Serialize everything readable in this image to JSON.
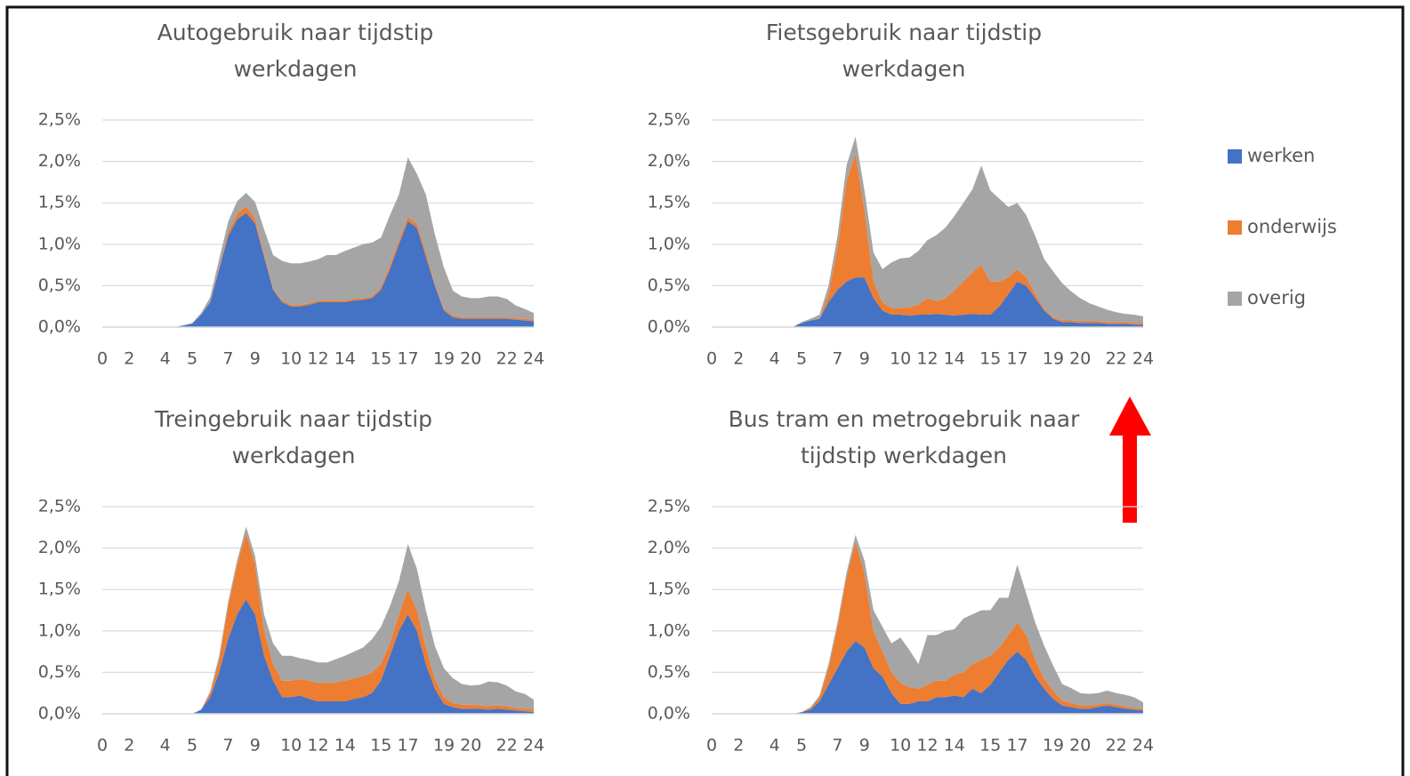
{
  "legend": [
    {
      "name": "werken",
      "color": "#4472c4"
    },
    {
      "name": "onderwijs",
      "color": "#ed7d31"
    },
    {
      "name": "overig",
      "color": "#a5a5a5"
    }
  ],
  "chart_data": [
    {
      "type": "area",
      "title": [
        "Autogebruik naar tijdstip",
        "werkdagen"
      ],
      "categories": [
        "0",
        null,
        null,
        "2",
        null,
        null,
        null,
        "4",
        null,
        null,
        "5",
        null,
        null,
        null,
        "7",
        null,
        null,
        "9",
        null,
        null,
        null,
        "10",
        null,
        null,
        "12",
        null,
        null,
        "14",
        null,
        null,
        null,
        "15",
        null,
        null,
        "17",
        null,
        null,
        null,
        "19",
        null,
        null,
        "20",
        null,
        null,
        null,
        "22",
        null,
        null,
        "24"
      ],
      "ylim": [
        0,
        2.5
      ],
      "yticks": [
        {
          "value": 0,
          "label": "0,0%"
        },
        {
          "value": 0.5,
          "label": "0,5%"
        },
        {
          "value": 1,
          "label": "1,0%"
        },
        {
          "value": 1.5,
          "label": "1,5%"
        },
        {
          "value": 2,
          "label": "2,0%"
        },
        {
          "value": 2.5,
          "label": "2,5%"
        }
      ],
      "grid": true,
      "series": [
        {
          "values": [
            0,
            0,
            0,
            0,
            0,
            0,
            0,
            0,
            0,
            0.02,
            0.04,
            0.15,
            0.3,
            0.7,
            1.1,
            1.3,
            1.38,
            1.25,
            0.85,
            0.45,
            0.3,
            0.25,
            0.25,
            0.27,
            0.3,
            0.3,
            0.3,
            0.3,
            0.32,
            0.33,
            0.35,
            0.45,
            0.7,
            1.0,
            1.28,
            1.2,
            0.85,
            0.5,
            0.2,
            0.12,
            0.1,
            0.1,
            0.1,
            0.1,
            0.1,
            0.1,
            0.09,
            0.08,
            0.07
          ]
        },
        {
          "values": [
            0,
            0,
            0,
            0,
            0,
            0,
            0,
            0,
            0,
            0,
            0,
            0,
            0.01,
            0.02,
            0.05,
            0.07,
            0.08,
            0.06,
            0.03,
            0.02,
            0.02,
            0.02,
            0.02,
            0.02,
            0.02,
            0.02,
            0.02,
            0.02,
            0.02,
            0.02,
            0.02,
            0.03,
            0.05,
            0.05,
            0.05,
            0.05,
            0.05,
            0.02,
            0.02,
            0.02,
            0.02,
            0.02,
            0.02,
            0.02,
            0.02,
            0.02,
            0.02,
            0.02,
            0.02
          ]
        },
        {
          "values": [
            0,
            0,
            0,
            0,
            0,
            0,
            0,
            0,
            0,
            0,
            0.01,
            0.02,
            0.05,
            0.1,
            0.12,
            0.15,
            0.16,
            0.2,
            0.3,
            0.4,
            0.48,
            0.5,
            0.5,
            0.5,
            0.5,
            0.55,
            0.55,
            0.6,
            0.62,
            0.65,
            0.65,
            0.6,
            0.6,
            0.55,
            0.72,
            0.6,
            0.7,
            0.6,
            0.5,
            0.3,
            0.25,
            0.23,
            0.23,
            0.25,
            0.25,
            0.22,
            0.15,
            0.12,
            0.08
          ]
        }
      ]
    },
    {
      "type": "area",
      "title": [
        "Fietsgebruik naar tijdstip",
        "werkdagen"
      ],
      "categories": [
        "0",
        null,
        null,
        "2",
        null,
        null,
        null,
        "4",
        null,
        null,
        "5",
        null,
        null,
        null,
        "7",
        null,
        null,
        "9",
        null,
        null,
        null,
        "10",
        null,
        null,
        "12",
        null,
        null,
        "14",
        null,
        null,
        null,
        "15",
        null,
        null,
        "17",
        null,
        null,
        null,
        "19",
        null,
        null,
        "20",
        null,
        null,
        null,
        "22",
        null,
        null,
        "24"
      ],
      "ylim": [
        0,
        2.5
      ],
      "yticks": [
        {
          "value": 0,
          "label": "0,0%"
        },
        {
          "value": 0.5,
          "label": "0,5%"
        },
        {
          "value": 1,
          "label": "1,0%"
        },
        {
          "value": 1.5,
          "label": "1,5%"
        },
        {
          "value": 2,
          "label": "2,0%"
        },
        {
          "value": 2.5,
          "label": "2,5%"
        }
      ],
      "grid": true,
      "series": [
        {
          "values": [
            0,
            0,
            0,
            0,
            0,
            0,
            0,
            0,
            0,
            0,
            0.05,
            0.08,
            0.1,
            0.3,
            0.45,
            0.55,
            0.6,
            0.6,
            0.35,
            0.2,
            0.15,
            0.15,
            0.14,
            0.15,
            0.15,
            0.16,
            0.15,
            0.14,
            0.15,
            0.16,
            0.15,
            0.15,
            0.25,
            0.4,
            0.55,
            0.5,
            0.35,
            0.2,
            0.1,
            0.06,
            0.06,
            0.05,
            0.05,
            0.05,
            0.04,
            0.04,
            0.04,
            0.03,
            0.03
          ]
        },
        {
          "values": [
            0,
            0,
            0,
            0,
            0,
            0,
            0,
            0,
            0,
            0,
            0,
            0,
            0,
            0.1,
            0.5,
            1.2,
            1.5,
            0.8,
            0.2,
            0.1,
            0.08,
            0.08,
            0.1,
            0.12,
            0.2,
            0.15,
            0.2,
            0.3,
            0.4,
            0.5,
            0.6,
            0.4,
            0.3,
            0.2,
            0.15,
            0.1,
            0.05,
            0.02,
            0.02,
            0.02,
            0.02,
            0.02,
            0.02,
            0.02,
            0.02,
            0.02,
            0.02,
            0.02,
            0.02
          ]
        },
        {
          "values": [
            0,
            0,
            0,
            0,
            0,
            0,
            0,
            0,
            0,
            0,
            0.01,
            0.02,
            0.05,
            0.1,
            0.15,
            0.2,
            0.2,
            0.25,
            0.35,
            0.4,
            0.55,
            0.6,
            0.6,
            0.65,
            0.7,
            0.8,
            0.85,
            0.9,
            0.95,
            1.0,
            1.2,
            1.1,
            1.0,
            0.85,
            0.8,
            0.75,
            0.7,
            0.6,
            0.55,
            0.45,
            0.35,
            0.28,
            0.22,
            0.18,
            0.15,
            0.12,
            0.1,
            0.1,
            0.08
          ]
        }
      ]
    },
    {
      "type": "area",
      "title": [
        "Treingebruik naar tijdstip",
        "werkdagen"
      ],
      "categories": [
        "0",
        null,
        null,
        "2",
        null,
        null,
        null,
        "4",
        null,
        null,
        "5",
        null,
        null,
        null,
        "7",
        null,
        null,
        "9",
        null,
        null,
        null,
        "10",
        null,
        null,
        "12",
        null,
        null,
        "14",
        null,
        null,
        null,
        "15",
        null,
        null,
        "17",
        null,
        null,
        null,
        "19",
        null,
        null,
        "20",
        null,
        null,
        null,
        "22",
        null,
        null,
        "24"
      ],
      "ylim": [
        0,
        2.5
      ],
      "yticks": [
        {
          "value": 0,
          "label": "0,0%"
        },
        {
          "value": 0.5,
          "label": "0,5%"
        },
        {
          "value": 1,
          "label": "1,0%"
        },
        {
          "value": 1.5,
          "label": "1,5%"
        },
        {
          "value": 2,
          "label": "2,0%"
        },
        {
          "value": 2.5,
          "label": "2,5%"
        }
      ],
      "grid": true,
      "series": [
        {
          "values": [
            0,
            0,
            0,
            0,
            0,
            0,
            0,
            0,
            0,
            0,
            0,
            0.05,
            0.2,
            0.5,
            0.9,
            1.2,
            1.38,
            1.2,
            0.7,
            0.4,
            0.2,
            0.2,
            0.22,
            0.18,
            0.15,
            0.15,
            0.15,
            0.15,
            0.18,
            0.2,
            0.25,
            0.4,
            0.7,
            1.0,
            1.2,
            1.0,
            0.6,
            0.3,
            0.12,
            0.08,
            0.06,
            0.06,
            0.06,
            0.05,
            0.06,
            0.05,
            0.04,
            0.03,
            0.02
          ]
        },
        {
          "values": [
            0,
            0,
            0,
            0,
            0,
            0,
            0,
            0,
            0,
            0,
            0,
            0,
            0.05,
            0.15,
            0.4,
            0.6,
            0.8,
            0.6,
            0.3,
            0.2,
            0.2,
            0.2,
            0.2,
            0.22,
            0.22,
            0.22,
            0.23,
            0.25,
            0.25,
            0.25,
            0.25,
            0.2,
            0.15,
            0.2,
            0.3,
            0.25,
            0.2,
            0.12,
            0.08,
            0.05,
            0.05,
            0.05,
            0.04,
            0.04,
            0.04,
            0.04,
            0.03,
            0.03,
            0.03
          ]
        },
        {
          "values": [
            0,
            0,
            0,
            0,
            0,
            0,
            0,
            0,
            0,
            0,
            0,
            0,
            0.02,
            0.05,
            0.05,
            0.05,
            0.08,
            0.1,
            0.2,
            0.25,
            0.3,
            0.3,
            0.25,
            0.25,
            0.25,
            0.25,
            0.28,
            0.3,
            0.32,
            0.35,
            0.4,
            0.45,
            0.45,
            0.4,
            0.55,
            0.5,
            0.45,
            0.4,
            0.35,
            0.3,
            0.25,
            0.23,
            0.25,
            0.3,
            0.28,
            0.25,
            0.2,
            0.18,
            0.12
          ]
        }
      ]
    },
    {
      "type": "area",
      "title": [
        "Bus tram en metrogebruik naar",
        "tijdstip werkdagen"
      ],
      "categories": [
        "0",
        null,
        null,
        "2",
        null,
        null,
        null,
        "4",
        null,
        null,
        "5",
        null,
        null,
        null,
        "7",
        null,
        null,
        "9",
        null,
        null,
        null,
        "10",
        null,
        null,
        "12",
        null,
        null,
        "14",
        null,
        null,
        null,
        "15",
        null,
        null,
        "17",
        null,
        null,
        null,
        "19",
        null,
        null,
        "20",
        null,
        null,
        null,
        "22",
        null,
        null,
        "24"
      ],
      "ylim": [
        0,
        2.5
      ],
      "yticks": [
        {
          "value": 0,
          "label": "0,0%"
        },
        {
          "value": 0.5,
          "label": "0,5%"
        },
        {
          "value": 1,
          "label": "1,0%"
        },
        {
          "value": 1.5,
          "label": "1,5%"
        },
        {
          "value": 2,
          "label": "2,0%"
        },
        {
          "value": 2.5,
          "label": "2,5%"
        }
      ],
      "grid": true,
      "series": [
        {
          "values": [
            0,
            0,
            0,
            0,
            0,
            0,
            0,
            0,
            0,
            0,
            0.02,
            0.05,
            0.15,
            0.35,
            0.55,
            0.75,
            0.88,
            0.8,
            0.55,
            0.45,
            0.25,
            0.12,
            0.12,
            0.15,
            0.15,
            0.2,
            0.2,
            0.22,
            0.2,
            0.3,
            0.25,
            0.35,
            0.5,
            0.65,
            0.75,
            0.65,
            0.45,
            0.3,
            0.18,
            0.1,
            0.08,
            0.06,
            0.06,
            0.08,
            0.1,
            0.08,
            0.06,
            0.05,
            0.04
          ]
        },
        {
          "values": [
            0,
            0,
            0,
            0,
            0,
            0,
            0,
            0,
            0,
            0,
            0,
            0.02,
            0.05,
            0.2,
            0.5,
            0.9,
            1.2,
            0.9,
            0.45,
            0.3,
            0.25,
            0.25,
            0.2,
            0.15,
            0.2,
            0.2,
            0.2,
            0.25,
            0.3,
            0.3,
            0.4,
            0.35,
            0.3,
            0.3,
            0.35,
            0.3,
            0.2,
            0.12,
            0.1,
            0.06,
            0.05,
            0.04,
            0.04,
            0.03,
            0.03,
            0.03,
            0.03,
            0.02,
            0.02
          ]
        },
        {
          "values": [
            0,
            0,
            0,
            0,
            0,
            0,
            0,
            0,
            0,
            0,
            0,
            0.01,
            0.02,
            0.05,
            0.05,
            0.05,
            0.08,
            0.15,
            0.25,
            0.3,
            0.35,
            0.55,
            0.45,
            0.3,
            0.6,
            0.55,
            0.6,
            0.55,
            0.65,
            0.6,
            0.6,
            0.55,
            0.6,
            0.45,
            0.7,
            0.5,
            0.45,
            0.4,
            0.3,
            0.2,
            0.18,
            0.15,
            0.14,
            0.14,
            0.15,
            0.14,
            0.14,
            0.13,
            0.08
          ]
        }
      ]
    }
  ]
}
